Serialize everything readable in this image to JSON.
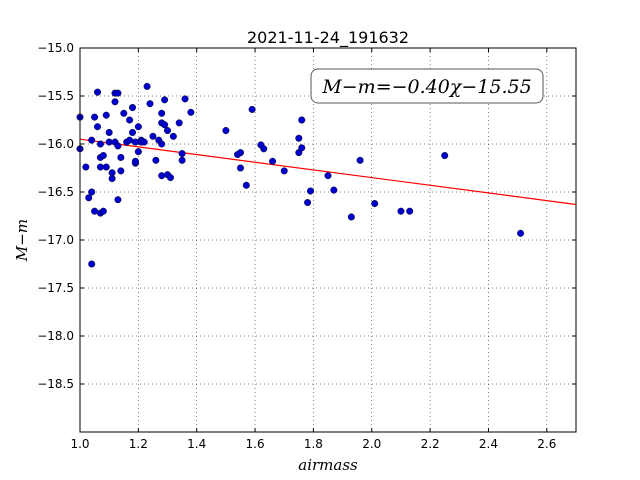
{
  "chart_data": {
    "type": "scatter",
    "title": "2021-11-24_191632",
    "xlabel": "airmass",
    "ylabel": "M−m",
    "xlim": [
      1.0,
      2.7
    ],
    "ylim": [
      -15.0,
      -19.0
    ],
    "y_inverted": true,
    "xticks": [
      "1.0",
      "1.2",
      "1.4",
      "1.6",
      "1.8",
      "2.0",
      "2.2",
      "2.4",
      "2.6"
    ],
    "yticks": [
      "−15.0",
      "−15.5",
      "−16.0",
      "−16.5",
      "−17.0",
      "−17.5",
      "−18.0",
      "−18.5"
    ],
    "grid": true,
    "annotation": "M−m=−0.40χ−15.55",
    "fit_line": {
      "slope": -0.4,
      "intercept": -15.55,
      "color": "#ff0000"
    },
    "marker_color": "#0000cc",
    "points": [
      {
        "x": 1.0,
        "y": -15.72
      },
      {
        "x": 1.0,
        "y": -16.05
      },
      {
        "x": 1.02,
        "y": -16.24
      },
      {
        "x": 1.03,
        "y": -16.56
      },
      {
        "x": 1.04,
        "y": -15.96
      },
      {
        "x": 1.04,
        "y": -17.25
      },
      {
        "x": 1.04,
        "y": -16.5
      },
      {
        "x": 1.05,
        "y": -16.7
      },
      {
        "x": 1.05,
        "y": -15.72
      },
      {
        "x": 1.06,
        "y": -15.46
      },
      {
        "x": 1.06,
        "y": -15.82
      },
      {
        "x": 1.07,
        "y": -16.14
      },
      {
        "x": 1.07,
        "y": -16.24
      },
      {
        "x": 1.07,
        "y": -16.0
      },
      {
        "x": 1.07,
        "y": -16.72
      },
      {
        "x": 1.08,
        "y": -16.7
      },
      {
        "x": 1.08,
        "y": -16.12
      },
      {
        "x": 1.09,
        "y": -16.24
      },
      {
        "x": 1.09,
        "y": -15.7
      },
      {
        "x": 1.1,
        "y": -15.88
      },
      {
        "x": 1.1,
        "y": -15.98
      },
      {
        "x": 1.11,
        "y": -16.36
      },
      {
        "x": 1.11,
        "y": -16.3
      },
      {
        "x": 1.12,
        "y": -15.47
      },
      {
        "x": 1.12,
        "y": -15.56
      },
      {
        "x": 1.12,
        "y": -15.98
      },
      {
        "x": 1.13,
        "y": -15.47
      },
      {
        "x": 1.13,
        "y": -16.02
      },
      {
        "x": 1.13,
        "y": -16.58
      },
      {
        "x": 1.14,
        "y": -16.28
      },
      {
        "x": 1.14,
        "y": -16.14
      },
      {
        "x": 1.15,
        "y": -15.68
      },
      {
        "x": 1.16,
        "y": -15.98
      },
      {
        "x": 1.17,
        "y": -15.75
      },
      {
        "x": 1.17,
        "y": -15.96
      },
      {
        "x": 1.18,
        "y": -15.62
      },
      {
        "x": 1.18,
        "y": -15.88
      },
      {
        "x": 1.19,
        "y": -15.98
      },
      {
        "x": 1.19,
        "y": -16.2
      },
      {
        "x": 1.19,
        "y": -16.18
      },
      {
        "x": 1.2,
        "y": -15.82
      },
      {
        "x": 1.2,
        "y": -16.08
      },
      {
        "x": 1.21,
        "y": -15.96
      },
      {
        "x": 1.21,
        "y": -15.98
      },
      {
        "x": 1.22,
        "y": -15.98
      },
      {
        "x": 1.23,
        "y": -15.4
      },
      {
        "x": 1.24,
        "y": -15.58
      },
      {
        "x": 1.25,
        "y": -15.92
      },
      {
        "x": 1.26,
        "y": -16.17
      },
      {
        "x": 1.27,
        "y": -15.96
      },
      {
        "x": 1.28,
        "y": -15.78
      },
      {
        "x": 1.28,
        "y": -15.68
      },
      {
        "x": 1.28,
        "y": -16.0
      },
      {
        "x": 1.28,
        "y": -16.33
      },
      {
        "x": 1.29,
        "y": -15.54
      },
      {
        "x": 1.29,
        "y": -15.8
      },
      {
        "x": 1.3,
        "y": -15.86
      },
      {
        "x": 1.3,
        "y": -16.32
      },
      {
        "x": 1.31,
        "y": -16.35
      },
      {
        "x": 1.32,
        "y": -15.92
      },
      {
        "x": 1.34,
        "y": -15.78
      },
      {
        "x": 1.35,
        "y": -16.17
      },
      {
        "x": 1.35,
        "y": -16.1
      },
      {
        "x": 1.36,
        "y": -15.53
      },
      {
        "x": 1.38,
        "y": -15.67
      },
      {
        "x": 1.5,
        "y": -15.86
      },
      {
        "x": 1.54,
        "y": -16.11
      },
      {
        "x": 1.55,
        "y": -16.25
      },
      {
        "x": 1.55,
        "y": -16.09
      },
      {
        "x": 1.57,
        "y": -16.43
      },
      {
        "x": 1.59,
        "y": -15.64
      },
      {
        "x": 1.62,
        "y": -16.01
      },
      {
        "x": 1.63,
        "y": -16.05
      },
      {
        "x": 1.66,
        "y": -16.18
      },
      {
        "x": 1.7,
        "y": -16.28
      },
      {
        "x": 1.75,
        "y": -15.94
      },
      {
        "x": 1.75,
        "y": -16.09
      },
      {
        "x": 1.76,
        "y": -15.75
      },
      {
        "x": 1.76,
        "y": -16.04
      },
      {
        "x": 1.78,
        "y": -16.61
      },
      {
        "x": 1.79,
        "y": -16.49
      },
      {
        "x": 1.85,
        "y": -16.33
      },
      {
        "x": 1.87,
        "y": -16.48
      },
      {
        "x": 1.93,
        "y": -16.76
      },
      {
        "x": 1.96,
        "y": -16.17
      },
      {
        "x": 2.01,
        "y": -16.62
      },
      {
        "x": 2.1,
        "y": -16.7
      },
      {
        "x": 2.13,
        "y": -16.7
      },
      {
        "x": 2.25,
        "y": -16.12
      },
      {
        "x": 2.51,
        "y": -16.93
      }
    ]
  }
}
